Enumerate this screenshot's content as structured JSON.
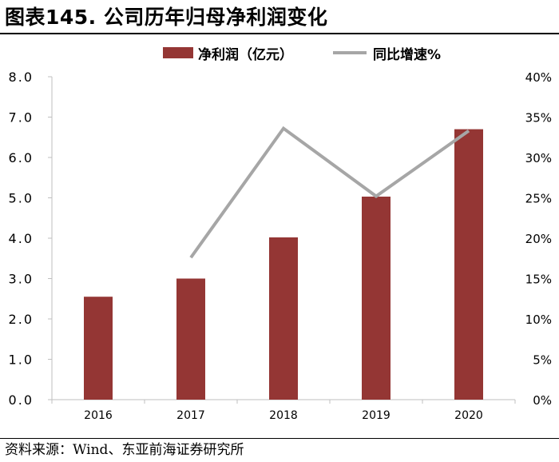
{
  "title": "图表145. 公司历年归母净利润变化",
  "source": "资料来源：Wind、东亚前海证券研究所",
  "colors": {
    "bar": "#943634",
    "line": "#A6A6A6",
    "axis": "#BFBFBF"
  },
  "legend": {
    "bar_label": "净利润（亿元）",
    "line_label": "同比增速%"
  },
  "chart_data": {
    "type": "bar+line",
    "categories": [
      "2016",
      "2017",
      "2018",
      "2019",
      "2020"
    ],
    "series": [
      {
        "name": "净利润（亿元）",
        "type": "bar",
        "axis": "left",
        "values": [
          2.55,
          3.0,
          4.02,
          5.03,
          6.7
        ]
      },
      {
        "name": "同比增速%",
        "type": "line",
        "axis": "right",
        "values": [
          null,
          17.6,
          33.6,
          25.2,
          33.3
        ]
      }
    ],
    "y_left": {
      "min": 0,
      "max": 8,
      "ticks": [
        "0.0",
        "1.0",
        "2.0",
        "3.0",
        "4.0",
        "5.0",
        "6.0",
        "7.0",
        "8.0"
      ]
    },
    "y_right": {
      "min": 0,
      "max": 40,
      "ticks": [
        "0%",
        "5%",
        "10%",
        "15%",
        "20%",
        "25%",
        "30%",
        "35%",
        "40%"
      ]
    },
    "grid": false,
    "legend_position": "top"
  }
}
